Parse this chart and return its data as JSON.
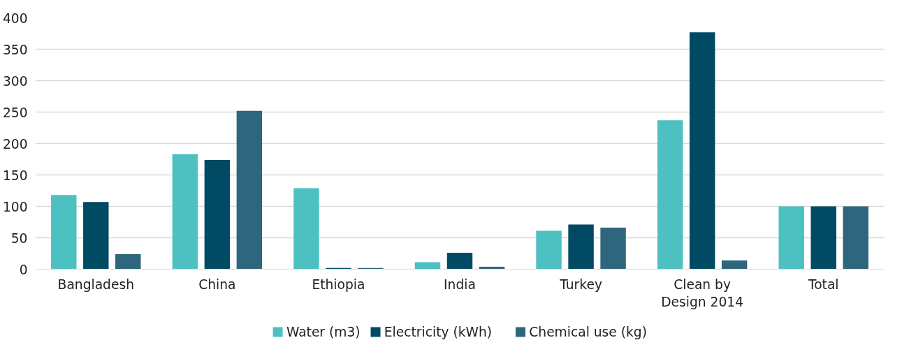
{
  "chart_data": {
    "type": "bar",
    "categories": [
      "Bangladesh",
      "China",
      "Ethiopia",
      "India",
      "Turkey",
      "Clean by Design 2014",
      "Total"
    ],
    "series": [
      {
        "name": "Water (m3)",
        "color": "#4dc0c2",
        "values": [
          118,
          183,
          129,
          11,
          61,
          237,
          100
        ]
      },
      {
        "name": "Electricity (kWh)",
        "color": "#004a63",
        "values": [
          107,
          174,
          2,
          26,
          71,
          377,
          100
        ]
      },
      {
        "name": "Chemical use (kg)",
        "color": "#2e667d",
        "values": [
          24,
          252,
          2,
          4,
          66,
          14,
          100
        ]
      }
    ],
    "ylim": [
      0,
      400
    ],
    "yticks": [
      0,
      50,
      100,
      150,
      200,
      250,
      300,
      350,
      400
    ],
    "grid": "y",
    "legend": "bottom"
  }
}
